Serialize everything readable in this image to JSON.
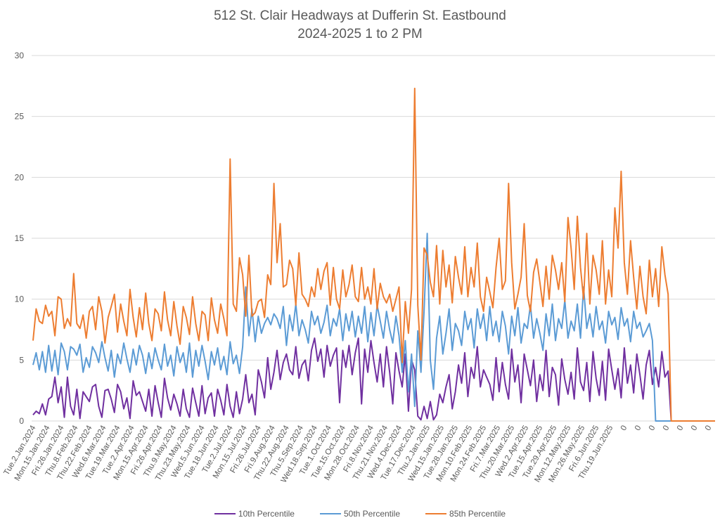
{
  "chart_data": {
    "type": "line",
    "title": "512 St. Clair Headways at Dufferin St. Eastbound",
    "subtitle": "2024-2025 1 to 2 PM",
    "xlabel": "",
    "ylabel": "",
    "ylim": [
      0,
      30
    ],
    "yticks": [
      0,
      5,
      10,
      15,
      20,
      25,
      30
    ],
    "grid": true,
    "legend_position": "bottom",
    "x_tick_labels": [
      "Tue.2.Jan.2024",
      "Mon.15.Jan.2024",
      "Fri.26.Jan.2024",
      "Thu.8.Feb.2024",
      "Thu.22.Feb.2024",
      "Wed.6.Mar.2024",
      "Tue.19.Mar.2024",
      "Tue.2.Apr.2024",
      "Mon.15.Apr.2024",
      "Fri.26.Apr.2024",
      "Thu.9.May.2024",
      "Thu.23.May.2024",
      "Wed.5.Jun.2024",
      "Tue.18.Jun.2024",
      "Tue.2.Jul.2024",
      "Mon.15.Jul.2024",
      "Fri.26.Jul.2024",
      "Fri.9.Aug.2024",
      "Thu.22.Aug.2024",
      "Thu.5.Sep.2024",
      "Wed.18.Sep.2024",
      "Tue.1.Oct.2024",
      "Tue.15.Oct.2024",
      "Mon.28.Oct.2024",
      "Fri.8.Nov.2024",
      "Thu.21.Nov.2024",
      "Wed.4.Dec.2024",
      "Tue.17.Dec.2024",
      "Thu.2.Jan.2025",
      "Wed.15.Jan.2025",
      "Tue.28.Jan.2025",
      "Mon.10.Feb.2025",
      "Mon.24.Feb.2025",
      "Fri.7.Mar.2025",
      "Thu.20.Mar.2025",
      "Wed.2.Apr.2025",
      "Tue.15.Apr.2025",
      "Tue.29.Apr.2025",
      "Mon.12.May.2025",
      "Mon.26.May.2025",
      "Fri.6.Jun.2025",
      "Thu.19.Jun.2025",
      "0",
      "0",
      "0",
      "0",
      "0",
      "0",
      "0"
    ],
    "points_per_label": 4.5,
    "series": [
      {
        "name": "10th Percentile",
        "color": "#7030A0",
        "values": [
          0.5,
          0.8,
          0.6,
          1.4,
          0.5,
          1.8,
          2.0,
          3.6,
          1.5,
          2.8,
          0.3,
          3.6,
          1.2,
          0.5,
          2.6,
          0.2,
          2.4,
          2.0,
          1.6,
          2.8,
          3.0,
          1.2,
          0.3,
          2.5,
          2.6,
          1.8,
          0.7,
          3.0,
          2.4,
          1.0,
          1.9,
          0.2,
          3.3,
          2.1,
          2.4,
          1.6,
          0.8,
          2.6,
          0.4,
          2.9,
          1.5,
          0.3,
          3.5,
          1.9,
          0.9,
          2.2,
          1.4,
          0.4,
          2.6,
          1.0,
          0.3,
          2.7,
          1.5,
          0.4,
          2.9,
          0.6,
          1.9,
          2.3,
          0.4,
          2.6,
          1.7,
          0.5,
          3.0,
          1.2,
          0.3,
          2.4,
          0.6,
          1.8,
          3.8,
          1.5,
          2.2,
          0.5,
          4.2,
          3.2,
          1.9,
          5.2,
          2.6,
          4.0,
          5.8,
          3.4,
          4.8,
          5.5,
          4.2,
          3.8,
          6.1,
          3.5,
          4.6,
          5.0,
          3.3,
          5.8,
          6.8,
          4.9,
          5.9,
          3.6,
          6.2,
          4.5,
          5.4,
          6.0,
          1.5,
          5.8,
          4.4,
          6.2,
          3.8,
          5.6,
          6.8,
          1.4,
          5.9,
          4.0,
          6.6,
          4.8,
          3.2,
          5.5,
          2.8,
          6.1,
          4.0,
          1.4,
          5.6,
          4.1,
          2.8,
          5.5,
          0.8,
          5.0,
          4.2,
          0.4,
          0.1,
          1.2,
          0.2,
          1.6,
          0.1,
          0.5,
          2.2,
          1.5,
          2.8,
          3.8,
          1.0,
          2.4,
          4.6,
          3.1,
          5.6,
          2.0,
          4.4,
          3.5,
          6.1,
          2.8,
          4.2,
          3.6,
          3.0,
          1.7,
          5.2,
          2.4,
          4.8,
          3.0,
          1.8,
          5.9,
          3.2,
          4.6,
          1.5,
          5.5,
          4.2,
          2.9,
          5.0,
          1.6,
          3.8,
          2.5,
          5.8,
          2.0,
          4.4,
          3.8,
          1.3,
          5.1,
          3.4,
          2.2,
          4.0,
          1.8,
          6.0,
          3.2,
          2.5,
          4.8,
          1.6,
          5.7,
          3.5,
          2.1,
          4.9,
          1.7,
          5.9,
          4.2,
          2.6,
          4.3,
          1.9,
          6.0,
          3.1,
          4.6,
          2.3,
          5.5,
          3.8,
          1.8,
          4.6,
          5.8,
          3.0,
          4.4,
          2.8,
          5.7,
          3.6,
          4.1,
          0.0,
          0,
          0,
          0,
          0,
          0,
          0,
          0,
          0,
          0,
          0,
          0,
          0,
          0,
          0,
          0,
          0,
          0,
          0,
          0,
          0,
          0,
          0,
          0,
          0,
          0,
          0,
          0,
          0,
          0,
          0,
          0,
          0
        ]
      },
      {
        "name": "50th Percentile",
        "color": "#5B9BD5",
        "values": [
          4.6,
          5.6,
          4.2,
          5.7,
          4.0,
          6.2,
          4.1,
          5.8,
          3.8,
          6.4,
          5.7,
          4.2,
          6.1,
          5.9,
          5.4,
          6.3,
          4.0,
          5.2,
          4.4,
          6.1,
          5.6,
          4.8,
          6.5,
          5.2,
          4.1,
          5.8,
          3.6,
          5.5,
          4.7,
          6.4,
          5.1,
          4.0,
          5.9,
          4.6,
          6.2,
          5.4,
          3.9,
          5.6,
          4.3,
          6.0,
          5.0,
          4.2,
          6.3,
          4.5,
          5.4,
          3.7,
          6.1,
          4.8,
          5.6,
          4.0,
          6.4,
          3.6,
          5.8,
          4.5,
          6.2,
          4.9,
          3.4,
          5.7,
          4.6,
          6.0,
          4.2,
          5.3,
          3.8,
          6.5,
          4.7,
          5.4,
          3.9,
          6.1,
          11.0,
          7.0,
          9.2,
          6.5,
          8.6,
          7.2,
          8.0,
          8.5,
          7.9,
          8.8,
          8.4,
          7.6,
          9.4,
          6.2,
          8.7,
          7.4,
          9.6,
          7.0,
          8.3,
          7.5,
          6.4,
          9.0,
          7.9,
          8.6,
          7.2,
          8.1,
          9.5,
          7.0,
          8.4,
          7.8,
          9.2,
          6.6,
          8.8,
          7.4,
          9.0,
          6.9,
          8.6,
          7.2,
          9.4,
          6.5,
          8.9,
          7.0,
          9.5,
          8.2,
          6.8,
          9.0,
          7.5,
          6.4,
          8.6,
          7.0,
          4.0,
          6.6,
          2.4,
          5.5,
          1.2,
          7.4,
          4.0,
          9.0,
          15.4,
          5.0,
          2.6,
          6.8,
          8.6,
          5.5,
          7.2,
          9.2,
          5.8,
          8.0,
          7.4,
          6.2,
          9.0,
          7.5,
          8.4,
          6.0,
          9.2,
          7.6,
          8.8,
          6.6,
          9.4,
          7.0,
          8.2,
          6.5,
          9.0,
          7.8,
          5.5,
          8.6,
          7.0,
          9.3,
          6.4,
          8.0,
          7.6,
          9.5,
          6.8,
          8.4,
          7.2,
          5.8,
          8.8,
          7.0,
          9.6,
          6.6,
          8.4,
          7.6,
          9.9,
          6.8,
          8.2,
          7.4,
          9.6,
          6.8,
          11.0,
          7.6,
          8.8,
          6.9,
          9.4,
          7.5,
          8.2,
          6.4,
          9.0,
          7.9,
          8.5,
          6.7,
          9.3,
          7.8,
          8.4,
          6.5,
          9.0,
          7.6,
          8.1,
          6.9,
          7.4,
          8.0,
          6.6,
          0.0,
          0,
          0,
          0,
          0,
          0,
          0,
          0,
          0,
          0,
          0,
          0,
          0,
          0,
          0,
          0,
          0,
          0,
          0,
          0,
          0,
          0,
          0,
          0,
          0,
          0,
          0,
          0,
          0,
          0,
          0,
          0,
          0
        ]
      },
      {
        "name": "85th Percentile",
        "color": "#ED7D31",
        "values": [
          6.6,
          9.2,
          8.2,
          8.0,
          9.5,
          8.6,
          9.0,
          7.0,
          10.2,
          10.0,
          7.6,
          8.4,
          7.8,
          12.1,
          8.0,
          7.6,
          8.7,
          6.8,
          9.0,
          9.4,
          7.5,
          10.2,
          9.0,
          6.4,
          8.5,
          9.4,
          10.4,
          7.3,
          9.6,
          8.2,
          7.0,
          10.8,
          8.5,
          6.9,
          9.3,
          7.5,
          10.5,
          8.0,
          6.6,
          9.2,
          8.8,
          7.4,
          10.6,
          8.3,
          7.0,
          9.8,
          7.8,
          6.3,
          9.4,
          8.5,
          7.1,
          10.2,
          8.0,
          6.6,
          9.0,
          8.7,
          6.6,
          10.1,
          8.3,
          7.2,
          9.6,
          8.4,
          7.0,
          21.5,
          9.6,
          9.0,
          13.4,
          12.0,
          8.6,
          13.6,
          8.6,
          8.9,
          9.8,
          10.0,
          8.5,
          12.0,
          11.2,
          19.5,
          13.0,
          16.2,
          11.0,
          11.2,
          13.2,
          12.5,
          9.5,
          13.8,
          10.4,
          10.0,
          9.4,
          11.0,
          10.2,
          12.5,
          10.8,
          12.3,
          13.0,
          9.5,
          12.6,
          10.0,
          9.2,
          12.4,
          10.2,
          11.2,
          12.8,
          10.2,
          9.8,
          12.6,
          10.0,
          11.0,
          9.6,
          12.5,
          9.2,
          11.3,
          10.2,
          9.7,
          10.4,
          9.0,
          10.0,
          11.0,
          4.8,
          9.8,
          7.2,
          10.8,
          27.3,
          9.5,
          5.0,
          14.2,
          13.6,
          11.4,
          10.2,
          14.4,
          9.6,
          14.0,
          11.0,
          12.8,
          9.7,
          13.5,
          11.8,
          10.4,
          14.3,
          10.2,
          12.6,
          11.0,
          14.6,
          10.2,
          9.0,
          11.8,
          10.6,
          9.3,
          12.6,
          15.0,
          10.8,
          11.5,
          19.5,
          13.0,
          9.2,
          10.4,
          11.8,
          16.2,
          10.3,
          9.0,
          12.2,
          13.3,
          11.4,
          9.4,
          12.7,
          10.0,
          13.6,
          12.4,
          10.8,
          13.0,
          9.8,
          16.7,
          14.2,
          10.8,
          16.8,
          12.6,
          10.0,
          15.4,
          9.6,
          13.6,
          12.4,
          10.4,
          14.8,
          9.6,
          12.4,
          10.2,
          17.5,
          14.2,
          20.5,
          13.0,
          10.4,
          14.8,
          11.8,
          9.2,
          12.7,
          10.2,
          8.8,
          13.2,
          10.2,
          12.5,
          9.4,
          14.3,
          12.0,
          10.4,
          0.0,
          0,
          0,
          0,
          0,
          0,
          0,
          0,
          0,
          0,
          0,
          0,
          0,
          0,
          0,
          0,
          0,
          0,
          0,
          0,
          0,
          0,
          0,
          0,
          0,
          0,
          0,
          0,
          0,
          0,
          0,
          0,
          0
        ]
      }
    ]
  }
}
